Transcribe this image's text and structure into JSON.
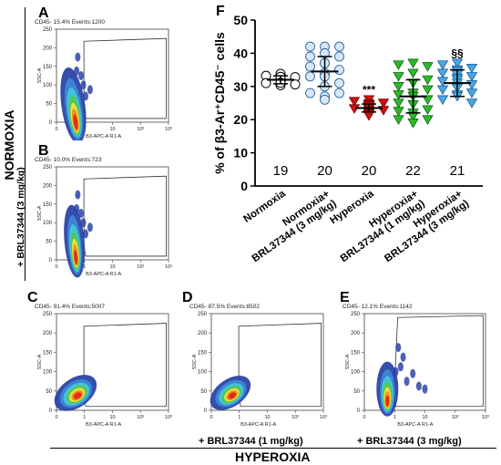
{
  "side_labels": {
    "normoxia": "NORMOXIA",
    "brl_3": "+ BRL37344 (3 mg/kg)",
    "hyperoxia": "HYPEROXIA",
    "brl_1_bottom": "+ BRL37344 (1 mg/kg)",
    "brl_3_bottom": "+ BRL37344 (3 mg/kg)"
  },
  "flow_axes": {
    "x_label": "B3-APC-A R1-A",
    "y_label": "SSC-A",
    "x_ticks": [
      "0",
      "1",
      "10",
      "10²",
      "10³"
    ],
    "y_ticks": [
      "0",
      "50",
      "100",
      "150",
      "200",
      "250"
    ]
  },
  "flow_panels": [
    {
      "letter": "A",
      "header": "CD45- 15.4% Events:1200"
    },
    {
      "letter": "B",
      "header": "CD45- 10.0% Events:723"
    },
    {
      "letter": "C",
      "header": "CD45- 91.4% Events:5007"
    },
    {
      "letter": "D",
      "header": "CD45- 87.5% Events:8502"
    },
    {
      "letter": "E",
      "header": "CD45- 12.1% Events:1142"
    }
  ],
  "chart_data": {
    "type": "scatter",
    "panel_letter": "F",
    "ylabel": "% of β3-Ar⁺CD45⁻ cells",
    "ylim": [
      0,
      50
    ],
    "y_ticks": [
      0,
      10,
      20,
      30,
      40,
      50
    ],
    "categories": [
      "Normoxia",
      "Normoxia+ BRL37344 (3 mg/kg)",
      "Hyperoxia",
      "Hyperoxia+ BRL37344 (1 mg/kg)",
      "Hyperoxia+ BRL37344 (3 mg/kg)"
    ],
    "category_lines": [
      [
        "Normoxia"
      ],
      [
        "Normoxia+",
        "BRL37344 (3 mg/kg)"
      ],
      [
        "Hyperoxia"
      ],
      [
        "Hyperoxia+",
        "BRL37344 (1 mg/kg)"
      ],
      [
        "Hyperoxia+",
        "BRL37344 (3 mg/kg)"
      ]
    ],
    "n_labels": [
      "19",
      "20",
      "20",
      "22",
      "21"
    ],
    "significance": [
      "",
      "",
      "***",
      "",
      "§§"
    ],
    "series": [
      {
        "marker": "circle",
        "fill": "#ffffff",
        "stroke": "#000000",
        "mean": 32,
        "sd": 1.2,
        "values": [
          33.5,
          33.2,
          32.8,
          32.5,
          32.4,
          32.2,
          32.0,
          31.8,
          31.7,
          31.5,
          31.4,
          31.2,
          31.0,
          30.8,
          30.6,
          30.4,
          33.8,
          32.9,
          31.1
        ]
      },
      {
        "marker": "circle",
        "fill": "#d6e8f7",
        "stroke": "#3b6ea5",
        "mean": 34.5,
        "sd": 4.5,
        "values": [
          42,
          42,
          42,
          40,
          39,
          39,
          37,
          37,
          36,
          35,
          34,
          34,
          33,
          33,
          31,
          30,
          28,
          28,
          27,
          26
        ]
      },
      {
        "marker": "triangle-down",
        "fill": "#cc1111",
        "stroke": "#7a0000",
        "mean": 23.5,
        "sd": 1.2,
        "values": [
          26,
          25.5,
          25,
          24.8,
          24.5,
          24.2,
          24,
          23.8,
          23.5,
          23.3,
          23,
          22.8,
          22.5,
          22.3,
          22,
          21.8,
          21.5,
          21.2,
          23.6,
          24.1
        ]
      },
      {
        "marker": "triangle-down",
        "fill": "#2db82d",
        "stroke": "#116611",
        "mean": 27,
        "sd": 5,
        "values": [
          37,
          36.5,
          36,
          34,
          33,
          32,
          31,
          30,
          29,
          28,
          27.5,
          27,
          26,
          25,
          24.5,
          23,
          22.5,
          22,
          21,
          20,
          20,
          19
        ]
      },
      {
        "marker": "triangle-down",
        "fill": "#4aa6e0",
        "stroke": "#1a5f96",
        "mean": 31,
        "sd": 4,
        "values": [
          37,
          36.5,
          35.5,
          35,
          34.5,
          34,
          33.5,
          33,
          32.5,
          32,
          31.5,
          31,
          30.5,
          30,
          29.5,
          29,
          28,
          27.5,
          27,
          26,
          25
        ]
      }
    ]
  },
  "colors": {
    "density_outer": "#2b44a8",
    "density_mid": "#3d86d6",
    "density_cyan": "#42c6d8",
    "density_green": "#57c64f",
    "density_yellow": "#f3e33a",
    "density_orange": "#f48a1f",
    "density_red": "#e0261f"
  }
}
